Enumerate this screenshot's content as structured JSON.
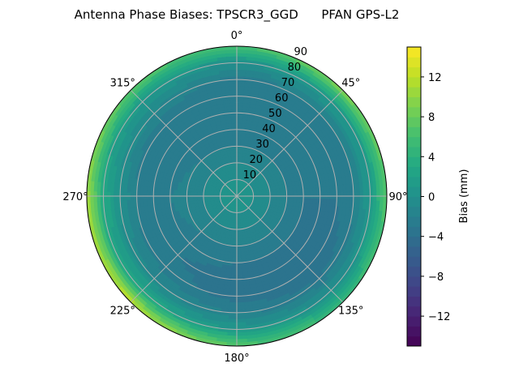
{
  "chart_data": {
    "type": "heatmap",
    "projection": "polar",
    "title": "Antenna Phase Biases: TPSCR3_GGD      PFAN GPS-L2",
    "theta_zero": "top",
    "theta_direction": "clockwise",
    "theta_ticks": [
      "0°",
      "45°",
      "90°",
      "135°",
      "180°",
      "225°",
      "270°",
      "315°"
    ],
    "theta_tick_values": [
      0,
      45,
      90,
      135,
      180,
      225,
      270,
      315
    ],
    "r_ticks": [
      "10",
      "20",
      "30",
      "40",
      "50",
      "60",
      "70",
      "80",
      "90"
    ],
    "r_tick_values": [
      10,
      20,
      30,
      40,
      50,
      60,
      70,
      80,
      90
    ],
    "rlim": [
      0,
      90
    ],
    "grid": true,
    "colormap": "viridis",
    "azimuth": [
      0,
      45,
      90,
      135,
      180,
      225,
      270,
      315
    ],
    "zenith": [
      0,
      10,
      20,
      30,
      40,
      50,
      60,
      70,
      80,
      90
    ],
    "values": [
      [
        0.5,
        0,
        -1,
        -2,
        -2.5,
        -3,
        -3,
        -2.5,
        0,
        6
      ],
      [
        0.5,
        0,
        -1,
        -2,
        -3,
        -3,
        -3,
        -2,
        1,
        9
      ],
      [
        0.5,
        0,
        -1,
        -2,
        -3,
        -3,
        -3,
        -2,
        1,
        7
      ],
      [
        0.5,
        0,
        -1,
        -2,
        -3,
        -4,
        -4,
        -3,
        0,
        5
      ],
      [
        0.5,
        0,
        -1,
        -2,
        -3,
        -3.5,
        -3.5,
        -2,
        1,
        7
      ],
      [
        0.5,
        0,
        -1,
        -2,
        -2.5,
        -3,
        -2.5,
        -1,
        3,
        12
      ],
      [
        0.5,
        0,
        -1,
        -1.5,
        -2,
        -2.5,
        -2,
        0,
        3,
        11
      ],
      [
        0.5,
        0,
        -1,
        -2,
        -3,
        -3,
        -3,
        -1,
        1,
        7
      ]
    ],
    "colorbar": {
      "label": "Bias (mm)",
      "range": [
        -15,
        15
      ],
      "level_step": 1,
      "ticks": [
        "−12",
        "−8",
        "−4",
        "0",
        "4",
        "8",
        "12"
      ],
      "tick_values": [
        -12,
        -8,
        -4,
        0,
        4,
        8,
        12
      ]
    }
  }
}
